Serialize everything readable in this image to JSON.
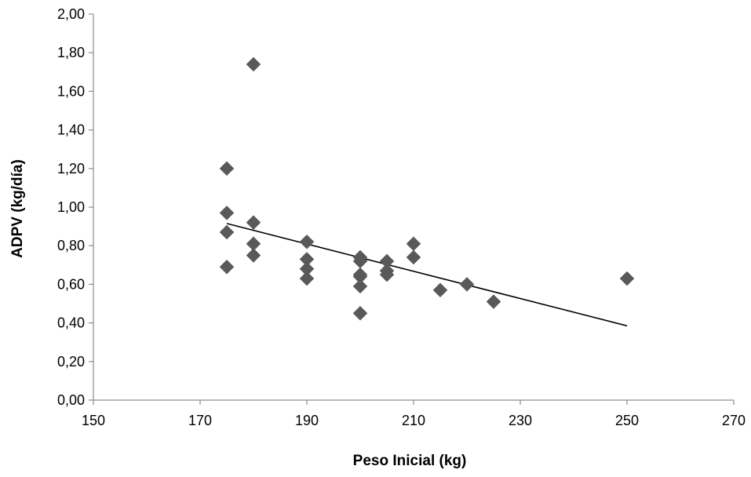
{
  "chart_data": {
    "type": "scatter",
    "title": "",
    "xlabel": "Peso Inicial (kg)",
    "ylabel": "ADPV (kg/día)",
    "xlim": [
      150,
      270
    ],
    "ylim": [
      0,
      2
    ],
    "x_ticks": [
      150,
      170,
      190,
      210,
      230,
      250,
      270
    ],
    "x_tick_labels": [
      "150",
      "170",
      "190",
      "210",
      "230",
      "250",
      "270"
    ],
    "y_ticks": [
      0,
      0.2,
      0.4,
      0.6,
      0.8,
      1.0,
      1.2,
      1.4,
      1.6,
      1.8,
      2.0
    ],
    "y_tick_labels": [
      "0,00",
      "0,20",
      "0,40",
      "0,60",
      "0,80",
      "1,00",
      "1,20",
      "1,40",
      "1,60",
      "1,80",
      "2,00"
    ],
    "grid": false,
    "legend": "none",
    "series": [
      {
        "marker": "diamond",
        "color": "#595959",
        "points": [
          {
            "x": 175,
            "y": 1.2
          },
          {
            "x": 175,
            "y": 0.97
          },
          {
            "x": 175,
            "y": 0.87
          },
          {
            "x": 175,
            "y": 0.69
          },
          {
            "x": 180,
            "y": 1.74
          },
          {
            "x": 180,
            "y": 0.92
          },
          {
            "x": 180,
            "y": 0.81
          },
          {
            "x": 180,
            "y": 0.75
          },
          {
            "x": 190,
            "y": 0.82
          },
          {
            "x": 190,
            "y": 0.73
          },
          {
            "x": 190,
            "y": 0.68
          },
          {
            "x": 190,
            "y": 0.63
          },
          {
            "x": 200,
            "y": 0.74
          },
          {
            "x": 200,
            "y": 0.72
          },
          {
            "x": 200,
            "y": 0.65
          },
          {
            "x": 200,
            "y": 0.64
          },
          {
            "x": 200,
            "y": 0.59
          },
          {
            "x": 200,
            "y": 0.45
          },
          {
            "x": 205,
            "y": 0.72
          },
          {
            "x": 205,
            "y": 0.67
          },
          {
            "x": 205,
            "y": 0.65
          },
          {
            "x": 210,
            "y": 0.81
          },
          {
            "x": 210,
            "y": 0.74
          },
          {
            "x": 215,
            "y": 0.57
          },
          {
            "x": 220,
            "y": 0.6
          },
          {
            "x": 225,
            "y": 0.51
          },
          {
            "x": 250,
            "y": 0.63
          }
        ]
      }
    ],
    "trendline": {
      "type": "linear",
      "color": "#000000",
      "x_start": 175,
      "y_start": 0.915,
      "x_end": 250,
      "y_end": 0.385
    }
  }
}
